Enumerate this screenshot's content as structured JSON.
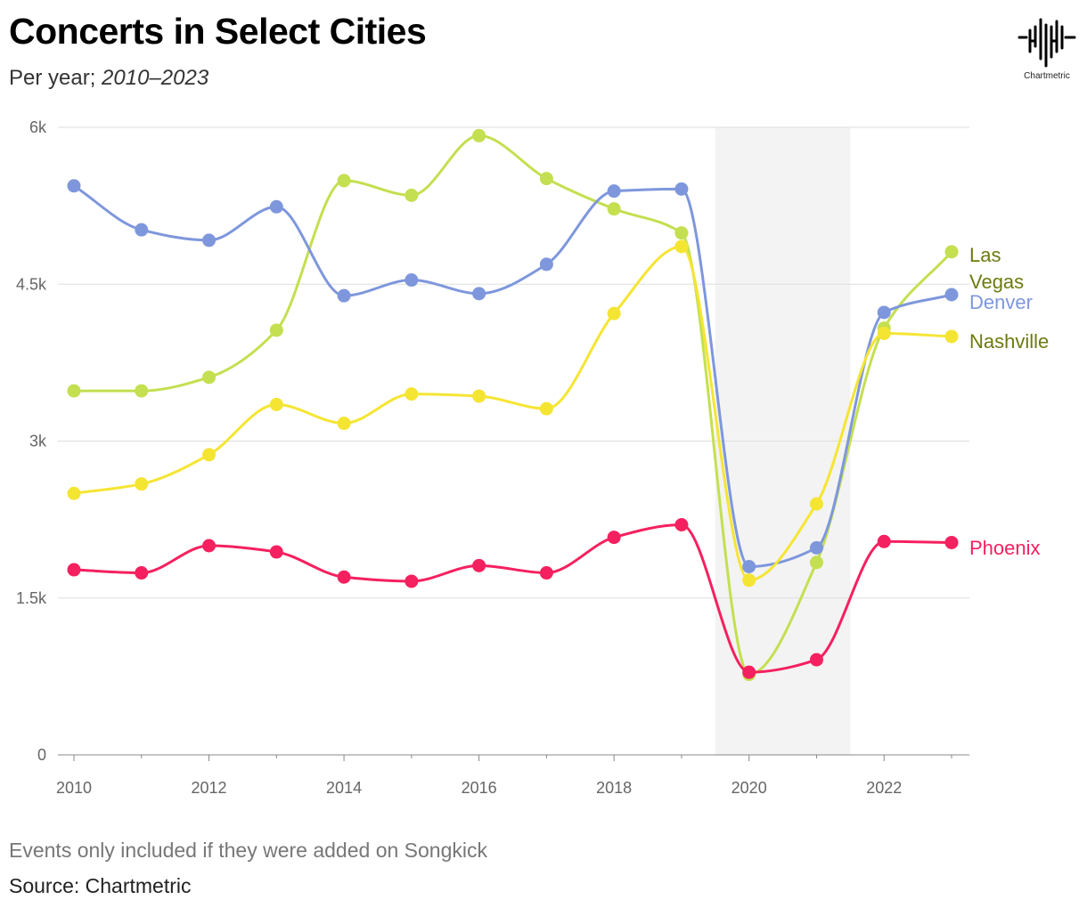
{
  "header": {
    "title": "Concerts in Select Cities",
    "subtitle_prefix": "Per year; ",
    "subtitle_range": "2010–2023"
  },
  "logo": {
    "icon": "soundwave-logo-icon",
    "text": "Chartmetric"
  },
  "footer": {
    "note": "Events only included if they were added on Songkick",
    "source": "Source: Chartmetric"
  },
  "chart_data": {
    "type": "line",
    "x": [
      2010,
      2011,
      2012,
      2013,
      2014,
      2015,
      2016,
      2017,
      2018,
      2019,
      2020,
      2021,
      2022,
      2023
    ],
    "xlim": [
      2010,
      2023
    ],
    "ylim": [
      0,
      6000
    ],
    "x_ticks": [
      2010,
      2012,
      2014,
      2016,
      2018,
      2020,
      2022
    ],
    "y_ticks": [
      0,
      1500,
      3000,
      4500,
      6000
    ],
    "y_tick_labels": [
      "0",
      "1.5k",
      "3k",
      "4.5k",
      "6k"
    ],
    "highlight_band": [
      2019.5,
      2021.5
    ],
    "grid": true,
    "legend": "direct labels at line ends (right)",
    "series": [
      {
        "name": "Las Vegas",
        "label_lines": [
          "Las",
          "Vegas"
        ],
        "color": "#c4df50",
        "label_color": "#6e7a10",
        "values": [
          3480,
          3480,
          3610,
          4060,
          5490,
          5350,
          5920,
          5510,
          5220,
          4990,
          770,
          1840,
          4080,
          4810
        ]
      },
      {
        "name": "Denver",
        "label_lines": [
          "Denver"
        ],
        "color": "#7e97dc",
        "label_color": "#7e97dc",
        "values": [
          5440,
          5020,
          4920,
          5240,
          4390,
          4540,
          4410,
          4690,
          5390,
          5410,
          1800,
          1980,
          4230,
          4400
        ]
      },
      {
        "name": "Nashville",
        "label_lines": [
          "Nashville"
        ],
        "color": "#f5e533",
        "label_color": "#6e7a10",
        "values": [
          2500,
          2590,
          2870,
          3350,
          3170,
          3450,
          3430,
          3310,
          4220,
          4860,
          1670,
          2400,
          4030,
          4000
        ]
      },
      {
        "name": "Phoenix",
        "label_lines": [
          "Phoenix"
        ],
        "color": "#f5205f",
        "label_color": "#f5205f",
        "values": [
          1770,
          1740,
          2000,
          1940,
          1700,
          1660,
          1810,
          1740,
          2080,
          2200,
          790,
          910,
          2040,
          2030
        ]
      }
    ]
  }
}
